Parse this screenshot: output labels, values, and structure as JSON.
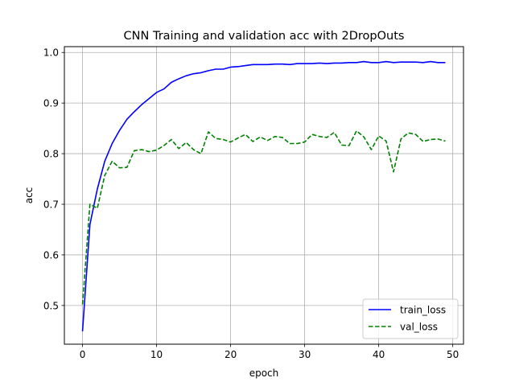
{
  "chart_data": {
    "type": "line",
    "title": "CNN Training and validation acc with 2DropOuts",
    "xlabel": "epoch",
    "ylabel": "acc",
    "xlim": [
      -2.45,
      51.45
    ],
    "ylim": [
      0.4235,
      1.0115
    ],
    "xticks": [
      0,
      10,
      20,
      30,
      40,
      50
    ],
    "yticks": [
      0.5,
      0.6,
      0.7,
      0.8,
      0.9,
      1.0
    ],
    "ytick_labels": [
      "0.5",
      "0.6",
      "0.7",
      "0.8",
      "0.9",
      "1.0"
    ],
    "grid": true,
    "legend": {
      "placement": "lower-right"
    },
    "x": [
      0,
      1,
      2,
      3,
      4,
      5,
      6,
      7,
      8,
      9,
      10,
      11,
      12,
      13,
      14,
      15,
      16,
      17,
      18,
      19,
      20,
      21,
      22,
      23,
      24,
      25,
      26,
      27,
      28,
      29,
      30,
      31,
      32,
      33,
      34,
      35,
      36,
      37,
      38,
      39,
      40,
      41,
      42,
      43,
      44,
      45,
      46,
      47,
      48,
      49
    ],
    "series": [
      {
        "name": "train_loss",
        "color": "#0000ff",
        "style": "solid",
        "values": [
          0.449,
          0.66,
          0.73,
          0.785,
          0.82,
          0.846,
          0.868,
          0.883,
          0.897,
          0.909,
          0.921,
          0.928,
          0.941,
          0.948,
          0.954,
          0.958,
          0.96,
          0.964,
          0.967,
          0.967,
          0.971,
          0.972,
          0.974,
          0.976,
          0.976,
          0.976,
          0.977,
          0.977,
          0.976,
          0.978,
          0.978,
          0.978,
          0.979,
          0.978,
          0.979,
          0.979,
          0.98,
          0.98,
          0.982,
          0.98,
          0.98,
          0.982,
          0.98,
          0.981,
          0.981,
          0.981,
          0.98,
          0.982,
          0.98,
          0.98
        ]
      },
      {
        "name": "val_loss",
        "color": "#008000",
        "style": "dashed",
        "values": [
          0.502,
          0.7,
          0.692,
          0.757,
          0.785,
          0.772,
          0.773,
          0.806,
          0.808,
          0.804,
          0.807,
          0.816,
          0.828,
          0.81,
          0.822,
          0.808,
          0.8,
          0.843,
          0.83,
          0.828,
          0.823,
          0.831,
          0.838,
          0.824,
          0.833,
          0.826,
          0.834,
          0.832,
          0.82,
          0.82,
          0.823,
          0.838,
          0.834,
          0.832,
          0.842,
          0.817,
          0.816,
          0.845,
          0.833,
          0.808,
          0.835,
          0.825,
          0.764,
          0.829,
          0.841,
          0.838,
          0.824,
          0.828,
          0.829,
          0.825
        ]
      }
    ]
  }
}
